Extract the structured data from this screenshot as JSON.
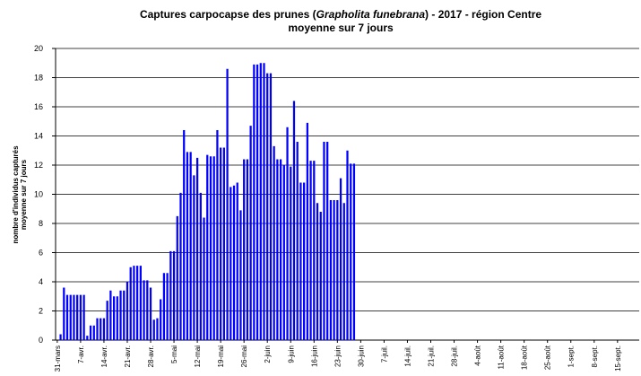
{
  "chart_data": {
    "type": "bar",
    "title": [
      "Captures carpocapse des prunes (",
      "Grapholita funebrana",
      ") - 2017 - région Centre"
    ],
    "subtitle": "moyenne sur 7 jours",
    "ylabel": [
      "nombre d'individus capturés",
      "moyenne sur 7 jours"
    ],
    "color": "#0000ff",
    "grid": true,
    "ylim": [
      0,
      20
    ],
    "yticks": [
      0,
      2,
      4,
      6,
      8,
      10,
      12,
      14,
      16,
      18,
      20
    ],
    "categories": [
      "31-mars",
      null,
      null,
      null,
      null,
      null,
      null,
      "7-avr.",
      null,
      null,
      null,
      null,
      null,
      null,
      "14-avr.",
      null,
      null,
      null,
      null,
      null,
      null,
      "21-avr.",
      null,
      null,
      null,
      null,
      null,
      null,
      "28-avr.",
      null,
      null,
      null,
      null,
      null,
      null,
      "5-mai",
      null,
      null,
      null,
      null,
      null,
      null,
      "12-mai",
      null,
      null,
      null,
      null,
      null,
      null,
      "19-mai",
      null,
      null,
      null,
      null,
      null,
      null,
      "26-mai",
      null,
      null,
      null,
      null,
      null,
      null,
      "2-juin",
      null,
      null,
      null,
      null,
      null,
      null,
      "9-juin",
      null,
      null,
      null,
      null,
      null,
      null,
      "16-juin",
      null,
      null,
      null,
      null,
      null,
      null,
      "23-juin",
      null,
      null,
      null,
      null,
      null,
      null,
      "30-juin",
      null,
      null,
      null,
      null,
      null,
      null,
      "7-juil.",
      null,
      null,
      null,
      null,
      null,
      null,
      "14-juil.",
      null,
      null,
      null,
      null,
      null,
      null,
      "21-juil.",
      null,
      null,
      null,
      null,
      null,
      null,
      "28-juil.",
      null,
      null,
      null,
      null,
      null,
      null,
      "4-août",
      null,
      null,
      null,
      null,
      null,
      null,
      "11-août",
      null,
      null,
      null,
      null,
      null,
      null,
      "18-août",
      null,
      null,
      null,
      null,
      null,
      null,
      "25-août",
      null,
      null,
      null,
      null,
      null,
      null,
      "1-sept.",
      null,
      null,
      null,
      null,
      null,
      null,
      "8-sept.",
      null,
      null,
      null,
      null,
      null,
      null,
      "15-sept.",
      null,
      null,
      null,
      null,
      null,
      null
    ],
    "values": [
      0,
      0.4,
      3.6,
      3.1,
      3.1,
      3.1,
      3.1,
      3.1,
      3.1,
      0.3,
      1.0,
      1.0,
      1.5,
      1.5,
      1.5,
      2.7,
      3.4,
      3.0,
      3.0,
      3.4,
      3.4,
      4.0,
      5.0,
      5.1,
      5.1,
      5.1,
      4.1,
      4.1,
      3.6,
      1.4,
      1.5,
      2.8,
      4.6,
      4.6,
      6.1,
      6.1,
      8.5,
      10.1,
      14.4,
      12.9,
      12.9,
      11.3,
      12.5,
      10.1,
      8.4,
      12.7,
      12.6,
      12.6,
      14.4,
      13.2,
      13.2,
      18.6,
      10.5,
      10.6,
      10.8,
      8.9,
      12.4,
      12.4,
      14.7,
      18.9,
      18.9,
      19.0,
      19.0,
      18.3,
      18.3,
      13.3,
      12.4,
      12.4,
      12.0,
      14.6,
      11.9,
      16.4,
      13.6,
      10.8,
      10.8,
      14.9,
      12.3,
      12.3,
      9.4,
      8.8,
      13.6,
      13.6,
      9.6,
      9.6,
      9.6,
      11.1,
      9.4,
      13.0,
      12.1,
      12.1,
      null,
      null,
      null,
      null,
      null,
      null,
      null,
      null,
      null,
      null,
      null,
      null,
      null,
      null,
      null,
      null,
      null,
      null,
      null,
      null,
      null,
      null,
      null,
      null,
      null,
      null,
      null,
      null,
      null,
      null,
      null,
      null,
      null,
      null,
      null,
      null,
      null,
      null,
      null,
      null,
      null,
      null,
      null,
      null,
      null,
      null,
      null,
      null,
      null,
      null,
      null,
      null,
      null,
      null,
      null,
      null,
      null,
      null,
      null,
      null,
      null,
      null,
      null,
      null,
      null,
      null,
      null,
      null,
      null,
      null,
      null,
      null,
      null,
      null,
      null,
      null,
      null,
      null,
      null,
      null,
      null,
      null,
      null,
      null,
      null
    ]
  }
}
